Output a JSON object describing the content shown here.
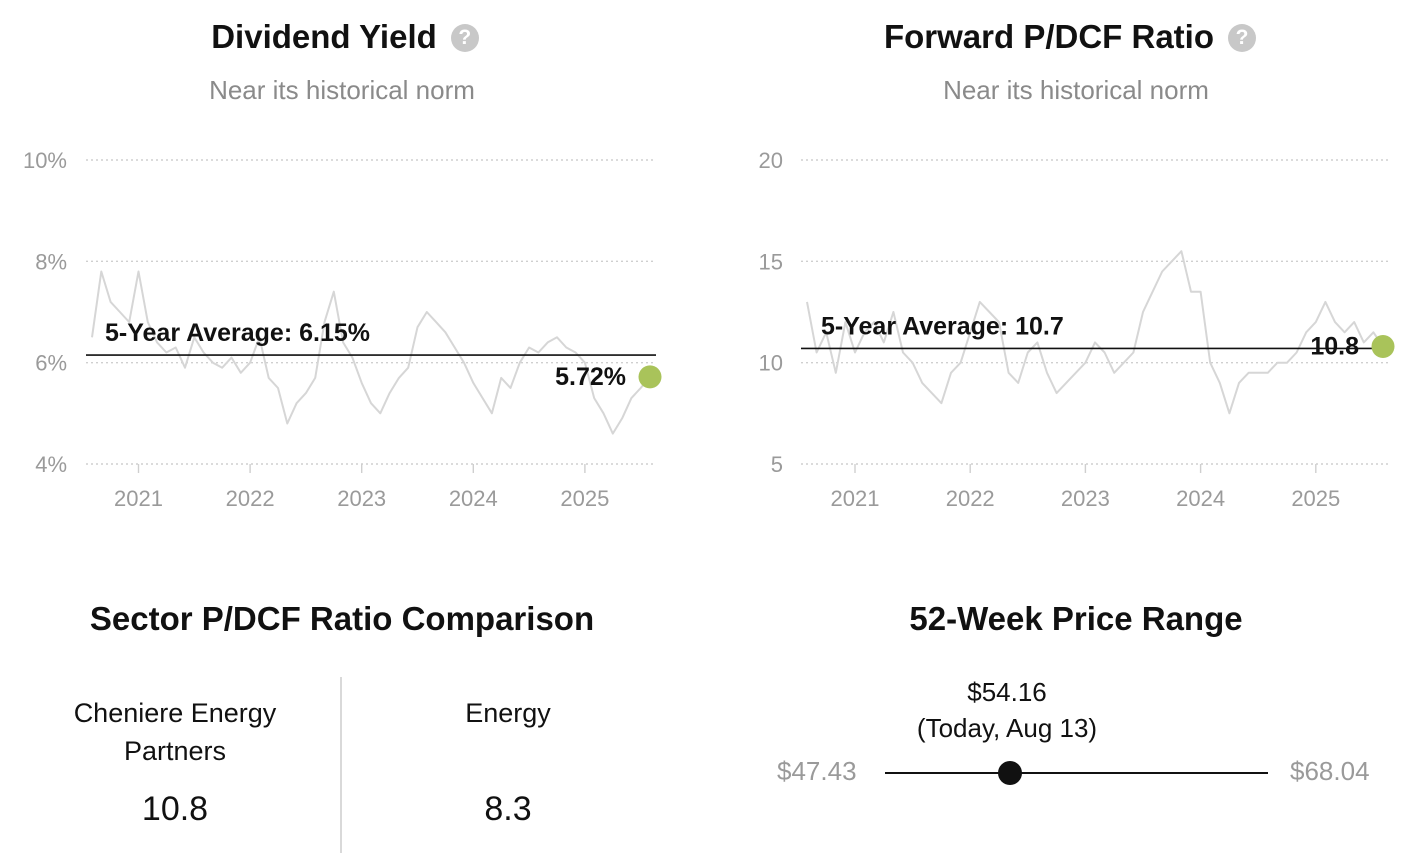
{
  "dividend": {
    "title": "Dividend Yield",
    "subtitle": "Near its historical norm",
    "help_icon": "question-circle-icon",
    "avg_label": "5-Year Average: 6.15%",
    "current_label": "5.72%"
  },
  "pdcf": {
    "title": "Forward P/DCF Ratio",
    "subtitle": "Near its historical norm",
    "help_icon": "question-circle-icon",
    "avg_label": "5-Year Average: 10.7",
    "current_label": "10.8"
  },
  "sector": {
    "title": "Sector P/DCF Ratio Comparison",
    "company_name": "Cheniere Energy Partners",
    "company_value": "10.8",
    "sector_name": "Energy",
    "sector_value": "8.3"
  },
  "range": {
    "title": "52-Week Price Range",
    "low": "$47.43",
    "high": "$68.04",
    "current": "$54.16",
    "current_note": "(Today, Aug 13)",
    "current_value": 54.16,
    "low_value": 47.43,
    "high_value": 68.04
  },
  "colors": {
    "series_line": "#d6d6d6",
    "current_dot": "#a9c35a",
    "average_line": "#111111",
    "grid": "#cfcfcf",
    "axis_text": "#9a9a9a"
  },
  "chart_data": [
    {
      "type": "line",
      "title": "Dividend Yield",
      "subtitle": "Near its historical norm",
      "xlabel": "",
      "ylabel": "",
      "x_ticks": [
        "2021",
        "2022",
        "2023",
        "2024",
        "2025"
      ],
      "y_ticks": [
        "4%",
        "6%",
        "8%",
        "10%"
      ],
      "y_tick_values": [
        4,
        6,
        8,
        10
      ],
      "xlim": [
        "2020-08",
        "2025-08"
      ],
      "ylim": [
        4,
        10
      ],
      "grid": true,
      "average": 6.15,
      "current": 5.72,
      "series": [
        {
          "x": [
            "2020-08",
            "2020-09",
            "2020-10",
            "2020-11",
            "2020-12",
            "2021-01",
            "2021-02",
            "2021-03",
            "2021-04",
            "2021-05",
            "2021-06",
            "2021-07",
            "2021-08",
            "2021-09",
            "2021-10",
            "2021-11",
            "2021-12",
            "2022-01",
            "2022-02",
            "2022-03",
            "2022-04",
            "2022-05",
            "2022-06",
            "2022-07",
            "2022-08",
            "2022-09",
            "2022-10",
            "2022-11",
            "2022-12",
            "2023-01",
            "2023-02",
            "2023-03",
            "2023-04",
            "2023-05",
            "2023-06",
            "2023-07",
            "2023-08",
            "2023-09",
            "2023-10",
            "2023-11",
            "2023-12",
            "2024-01",
            "2024-02",
            "2024-03",
            "2024-04",
            "2024-05",
            "2024-06",
            "2024-07",
            "2024-08",
            "2024-09",
            "2024-10",
            "2024-11",
            "2024-12",
            "2025-01",
            "2025-02",
            "2025-03",
            "2025-04",
            "2025-05",
            "2025-06",
            "2025-07",
            "2025-08"
          ],
          "values": [
            6.5,
            7.8,
            7.2,
            7.0,
            6.8,
            7.8,
            6.8,
            6.4,
            6.2,
            6.3,
            5.9,
            6.5,
            6.2,
            6.0,
            5.9,
            6.1,
            5.8,
            6.0,
            6.5,
            5.7,
            5.5,
            4.8,
            5.2,
            5.4,
            5.7,
            6.8,
            7.4,
            6.4,
            6.1,
            5.6,
            5.2,
            5.0,
            5.4,
            5.7,
            5.9,
            6.7,
            7.0,
            6.8,
            6.6,
            6.3,
            6.0,
            5.6,
            5.3,
            5.0,
            5.7,
            5.5,
            6.0,
            6.3,
            6.2,
            6.4,
            6.5,
            6.3,
            6.2,
            6.0,
            5.3,
            5.0,
            4.6,
            4.9,
            5.3,
            5.5,
            5.72
          ]
        }
      ]
    },
    {
      "type": "line",
      "title": "Forward P/DCF Ratio",
      "subtitle": "Near its historical norm",
      "xlabel": "",
      "ylabel": "",
      "x_ticks": [
        "2021",
        "2022",
        "2023",
        "2024",
        "2025"
      ],
      "y_ticks": [
        "5",
        "10",
        "15",
        "20"
      ],
      "y_tick_values": [
        5,
        10,
        15,
        20
      ],
      "xlim": [
        "2020-08",
        "2025-08"
      ],
      "ylim": [
        5,
        20
      ],
      "grid": true,
      "average": 10.7,
      "current": 10.8,
      "series": [
        {
          "x": [
            "2020-08",
            "2020-09",
            "2020-10",
            "2020-11",
            "2020-12",
            "2021-01",
            "2021-02",
            "2021-03",
            "2021-04",
            "2021-05",
            "2021-06",
            "2021-07",
            "2021-08",
            "2021-09",
            "2021-10",
            "2021-11",
            "2021-12",
            "2022-01",
            "2022-02",
            "2022-03",
            "2022-04",
            "2022-05",
            "2022-06",
            "2022-07",
            "2022-08",
            "2022-09",
            "2022-10",
            "2022-11",
            "2022-12",
            "2023-01",
            "2023-02",
            "2023-03",
            "2023-04",
            "2023-05",
            "2023-06",
            "2023-07",
            "2023-08",
            "2023-09",
            "2023-10",
            "2023-11",
            "2023-12",
            "2024-01",
            "2024-02",
            "2024-03",
            "2024-04",
            "2024-05",
            "2024-06",
            "2024-07",
            "2024-08",
            "2024-09",
            "2024-10",
            "2024-11",
            "2024-12",
            "2025-01",
            "2025-02",
            "2025-03",
            "2025-04",
            "2025-05",
            "2025-06",
            "2025-07",
            "2025-08"
          ],
          "values": [
            13.0,
            10.5,
            11.5,
            9.5,
            12.0,
            10.5,
            11.5,
            12.0,
            11.0,
            12.5,
            10.5,
            10.0,
            9.0,
            8.5,
            8.0,
            9.5,
            10.0,
            11.5,
            13.0,
            12.5,
            12.0,
            9.5,
            9.0,
            10.5,
            11.0,
            9.5,
            8.5,
            9.0,
            9.5,
            10.0,
            11.0,
            10.5,
            9.5,
            10.0,
            10.5,
            12.5,
            13.5,
            14.5,
            15.0,
            15.5,
            13.5,
            13.5,
            10.0,
            9.0,
            7.5,
            9.0,
            9.5,
            9.5,
            9.5,
            10.0,
            10.0,
            10.5,
            11.5,
            12.0,
            13.0,
            12.0,
            11.5,
            12.0,
            11.0,
            11.5,
            10.8
          ]
        }
      ]
    }
  ]
}
